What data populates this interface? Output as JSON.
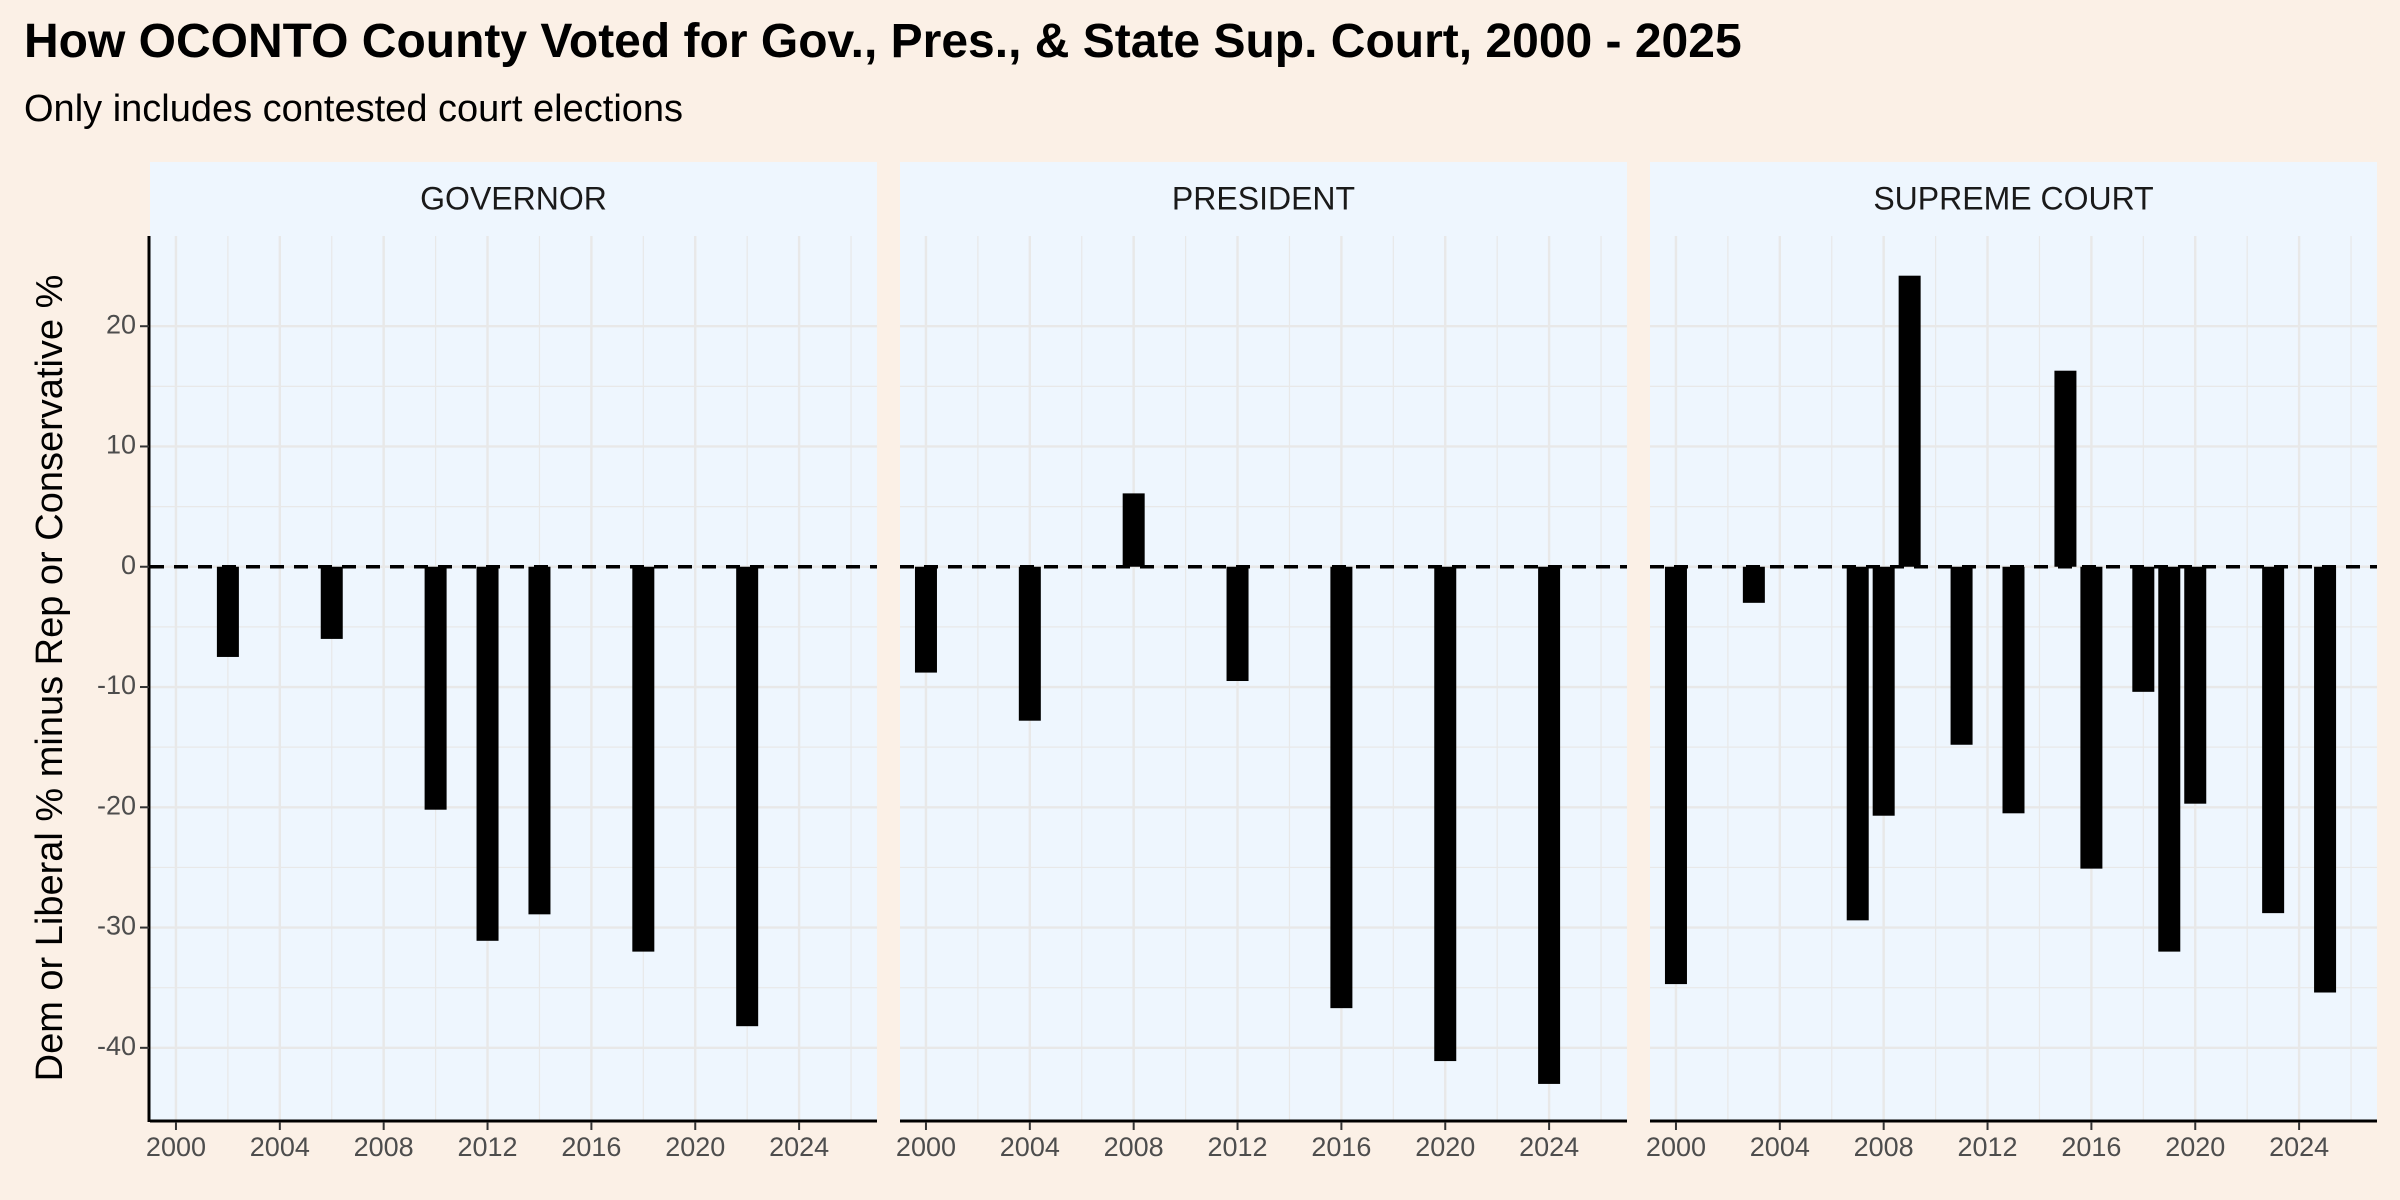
{
  "title": "How OCONTO County Voted for Gov., Pres., & State Sup. Court, 2000 - 2025",
  "subtitle": "Only includes contested court elections",
  "colors": {
    "background": "#fbf0e6",
    "panel": "#eef6fe",
    "grid": "#e8e8e8",
    "bar": "#000000",
    "zero_line": "#000000"
  },
  "chart_data": {
    "type": "bar",
    "facet": true,
    "ylabel": "Dem or Liberal % minus Rep or Conservative %",
    "xlabel": "",
    "ylim": [
      -46,
      27.5
    ],
    "xlim": [
      1999,
      2027
    ],
    "y_ticks": [
      20,
      10,
      0,
      -10,
      -20,
      -30,
      -40
    ],
    "x_ticks": [
      2000,
      2004,
      2008,
      2012,
      2016,
      2020,
      2024
    ],
    "reference_line": {
      "y": 0,
      "style": "dashed"
    },
    "grid": true,
    "panels": [
      {
        "name": "GOVERNOR",
        "points": [
          {
            "x": 2002,
            "y": -7.5
          },
          {
            "x": 2006,
            "y": -6
          },
          {
            "x": 2010,
            "y": -20.2
          },
          {
            "x": 2012,
            "y": -31.1
          },
          {
            "x": 2014,
            "y": -28.9
          },
          {
            "x": 2018,
            "y": -32
          },
          {
            "x": 2022,
            "y": -38.2
          }
        ]
      },
      {
        "name": "PRESIDENT",
        "points": [
          {
            "x": 2000,
            "y": -8.8
          },
          {
            "x": 2004,
            "y": -12.8
          },
          {
            "x": 2008,
            "y": 6.1
          },
          {
            "x": 2012,
            "y": -9.5
          },
          {
            "x": 2016,
            "y": -36.7
          },
          {
            "x": 2020,
            "y": -41.1
          },
          {
            "x": 2024,
            "y": -43
          }
        ]
      },
      {
        "name": "SUPREME COURT",
        "points": [
          {
            "x": 2000,
            "y": -34.7
          },
          {
            "x": 2003,
            "y": -3
          },
          {
            "x": 2007,
            "y": -29.4
          },
          {
            "x": 2008,
            "y": -20.7
          },
          {
            "x": 2009,
            "y": 24.2
          },
          {
            "x": 2011,
            "y": -14.8
          },
          {
            "x": 2013,
            "y": -20.5
          },
          {
            "x": 2015,
            "y": 16.3
          },
          {
            "x": 2016,
            "y": -25.1
          },
          {
            "x": 2018,
            "y": -10.4
          },
          {
            "x": 2019,
            "y": -32
          },
          {
            "x": 2020,
            "y": -19.7
          },
          {
            "x": 2023,
            "y": -28.8
          },
          {
            "x": 2025,
            "y": -35.4
          }
        ]
      }
    ]
  }
}
